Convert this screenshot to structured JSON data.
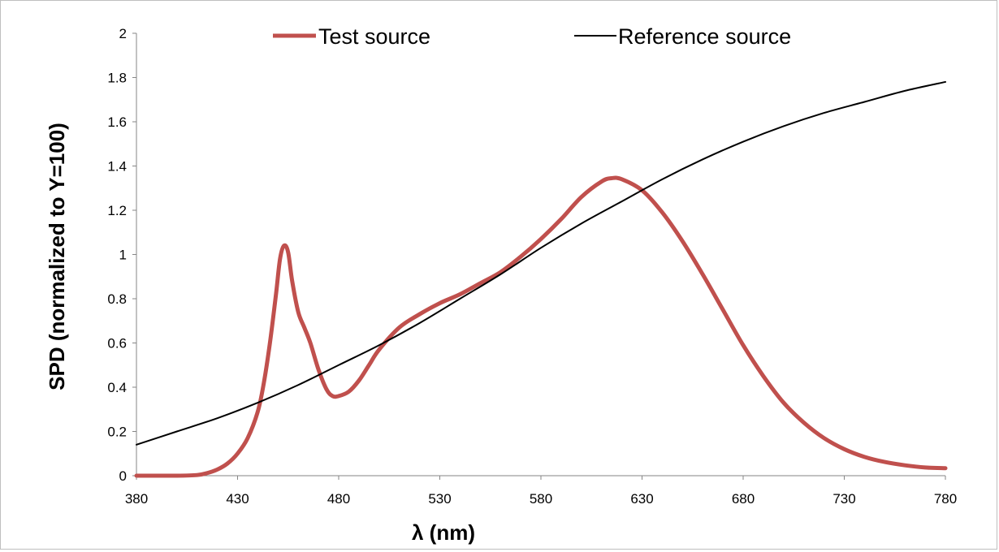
{
  "chart_data": {
    "type": "line",
    "xlabel": "λ (nm)",
    "ylabel": "SPD (normalized to Y=100)",
    "xlim": [
      380,
      780
    ],
    "ylim": [
      0,
      2
    ],
    "x_ticks": [
      "380",
      "430",
      "480",
      "530",
      "580",
      "630",
      "680",
      "730",
      "780"
    ],
    "y_ticks": [
      "0",
      "0.2",
      "0.4",
      "0.6",
      "0.8",
      "1",
      "1.2",
      "1.4",
      "1.6",
      "1.8",
      "2"
    ],
    "grid": false,
    "legend_position": "top",
    "series": [
      {
        "name": "Test source",
        "color": "#c0504d",
        "x": [
          380,
          400,
          410,
          415,
          420,
          425,
          430,
          435,
          440,
          443,
          446,
          449,
          451,
          453,
          455,
          457,
          460,
          463,
          466,
          470,
          474,
          477,
          480,
          485,
          490,
          495,
          500,
          510,
          520,
          530,
          540,
          550,
          560,
          570,
          580,
          590,
          600,
          610,
          615,
          620,
          630,
          640,
          650,
          660,
          670,
          680,
          690,
          700,
          710,
          720,
          730,
          740,
          750,
          760,
          770,
          780
        ],
        "y": [
          0,
          0,
          0.003,
          0.012,
          0.028,
          0.055,
          0.1,
          0.17,
          0.29,
          0.42,
          0.6,
          0.82,
          0.98,
          1.04,
          1.01,
          0.88,
          0.74,
          0.67,
          0.6,
          0.48,
          0.39,
          0.36,
          0.36,
          0.38,
          0.43,
          0.5,
          0.57,
          0.67,
          0.73,
          0.78,
          0.82,
          0.87,
          0.92,
          0.99,
          1.07,
          1.16,
          1.26,
          1.33,
          1.345,
          1.34,
          1.29,
          1.19,
          1.06,
          0.91,
          0.75,
          0.59,
          0.45,
          0.33,
          0.24,
          0.17,
          0.12,
          0.085,
          0.062,
          0.047,
          0.037,
          0.034
        ]
      },
      {
        "name": "Reference source",
        "color": "#000000",
        "x": [
          380,
          400,
          420,
          440,
          460,
          480,
          500,
          520,
          540,
          560,
          580,
          600,
          620,
          640,
          660,
          680,
          700,
          720,
          740,
          760,
          780
        ],
        "y": [
          0.14,
          0.2,
          0.26,
          0.33,
          0.41,
          0.5,
          0.59,
          0.69,
          0.8,
          0.91,
          1.03,
          1.14,
          1.24,
          1.34,
          1.43,
          1.51,
          1.58,
          1.64,
          1.69,
          1.74,
          1.78
        ]
      }
    ]
  }
}
